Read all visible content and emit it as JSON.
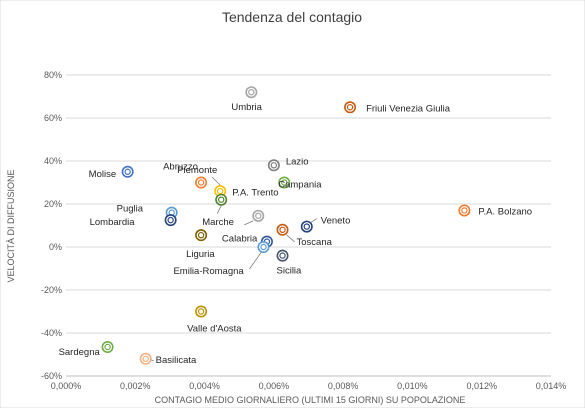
{
  "chart_data": {
    "type": "scatter",
    "title": "Tendenza del contagio",
    "xlabel": "CONTAGIO MEDIO GIORNALIERO (ULTIMI 15 GIORNI) SU POPOLAZIONE",
    "ylabel": "VELOCITÀ DI DIFFUSIONE",
    "xlim": [
      0,
      0.014
    ],
    "ylim": [
      -60,
      80
    ],
    "x_ticks": [
      "0,000%",
      "0,002%",
      "0,004%",
      "0,006%",
      "0,008%",
      "0,010%",
      "0,012%",
      "0,014%"
    ],
    "y_ticks": [
      "80%",
      "60%",
      "40%",
      "20%",
      "0%",
      "-20%",
      "-40%",
      "-60%"
    ],
    "x_tick_values": [
      0,
      0.002,
      0.004,
      0.006,
      0.008,
      0.01,
      0.012,
      0.014
    ],
    "y_tick_values": [
      80,
      60,
      40,
      20,
      0,
      -20,
      -40,
      -60
    ],
    "grid": "horizontal",
    "legend": "none",
    "x_unit": "%",
    "y_unit": "%",
    "points": [
      {
        "label": "Umbria",
        "x": 0.00535,
        "y": 72,
        "color": "#a5a5a5"
      },
      {
        "label": "Friuli Venezia Giulia",
        "x": 0.0082,
        "y": 65,
        "color": "#c55a11"
      },
      {
        "label": "Lazio",
        "x": 0.006,
        "y": 38,
        "color": "#7f7f7f"
      },
      {
        "label": "Molise",
        "x": 0.00178,
        "y": 35,
        "color": "#4472c4"
      },
      {
        "label": "Abruzzo",
        "x": 0.0039,
        "y": 30,
        "color": "#ed7d31"
      },
      {
        "label": "Piemonte",
        "x": 0.00445,
        "y": 26,
        "color": "#ffc000"
      },
      {
        "label": "Campania",
        "x": 0.0063,
        "y": 30,
        "color": "#70ad47"
      },
      {
        "label": "P.A. Trento",
        "x": 0.00448,
        "y": 22,
        "color": "#548235"
      },
      {
        "label": "P.A. Bolzano",
        "x": 0.0115,
        "y": 17,
        "color": "#ed7d31"
      },
      {
        "label": "Puglia",
        "x": 0.00305,
        "y": 16,
        "color": "#5b9bd5"
      },
      {
        "label": "Lombardia",
        "x": 0.00302,
        "y": 12.5,
        "color": "#264478"
      },
      {
        "label": "Marche",
        "x": 0.00555,
        "y": 14.5,
        "color": "#a5a5a5"
      },
      {
        "label": "Veneto",
        "x": 0.00695,
        "y": 9.5,
        "color": "#264478"
      },
      {
        "label": "Toscana",
        "x": 0.00625,
        "y": 8,
        "color": "#c55a11"
      },
      {
        "label": "Liguria",
        "x": 0.0039,
        "y": 5.5,
        "color": "#7f6000"
      },
      {
        "label": "Calabria",
        "x": 0.0058,
        "y": 2.5,
        "color": "#2f5597"
      },
      {
        "label": "Emilia-Romagna",
        "x": 0.0057,
        "y": 0,
        "color": "#5b9bd5"
      },
      {
        "label": "Sicilia",
        "x": 0.00625,
        "y": -4,
        "color": "#44546a"
      },
      {
        "label": "Valle d'Aosta",
        "x": 0.0039,
        "y": -30,
        "color": "#bf9000"
      },
      {
        "label": "Sardegna",
        "x": 0.0012,
        "y": -46.5,
        "color": "#70ad47"
      },
      {
        "label": "Basilicata",
        "x": 0.0023,
        "y": -52,
        "color": "#f4b183"
      }
    ]
  }
}
